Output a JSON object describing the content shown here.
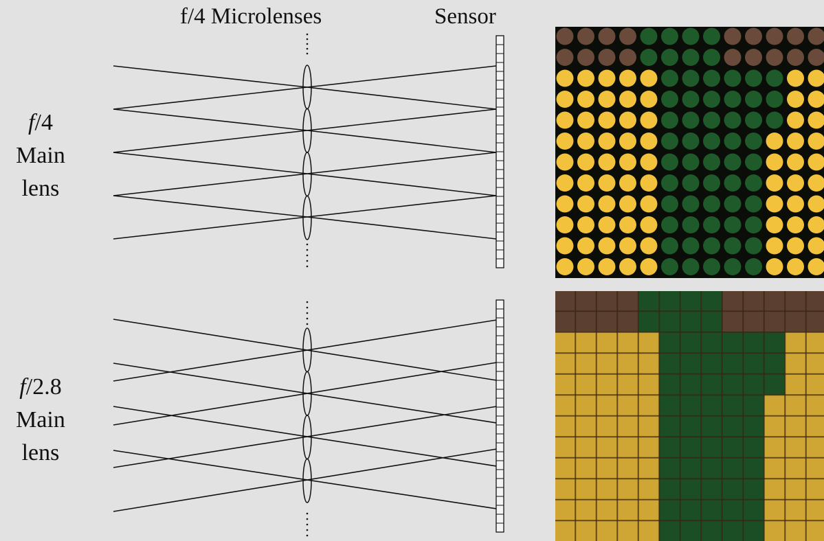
{
  "headers": {
    "microlenses": "f/4 Microlenses",
    "sensor": "Sensor"
  },
  "panels": [
    {
      "f_prefix": "f",
      "f_value": "/4",
      "line2": "Main",
      "line3": "lens",
      "ray_mode": "converging"
    },
    {
      "f_prefix": "f",
      "f_value": "/2.8",
      "line2": "Main",
      "line3": "lens",
      "ray_mode": "overlapping"
    }
  ],
  "colors": {
    "background": "#e2e2e2",
    "lines": "#111111",
    "photo_dark": "#0b0d08",
    "photo_yellow": "#f2c23c",
    "photo_green": "#1f5a2a",
    "photo_brown": "#6a4a3a"
  }
}
